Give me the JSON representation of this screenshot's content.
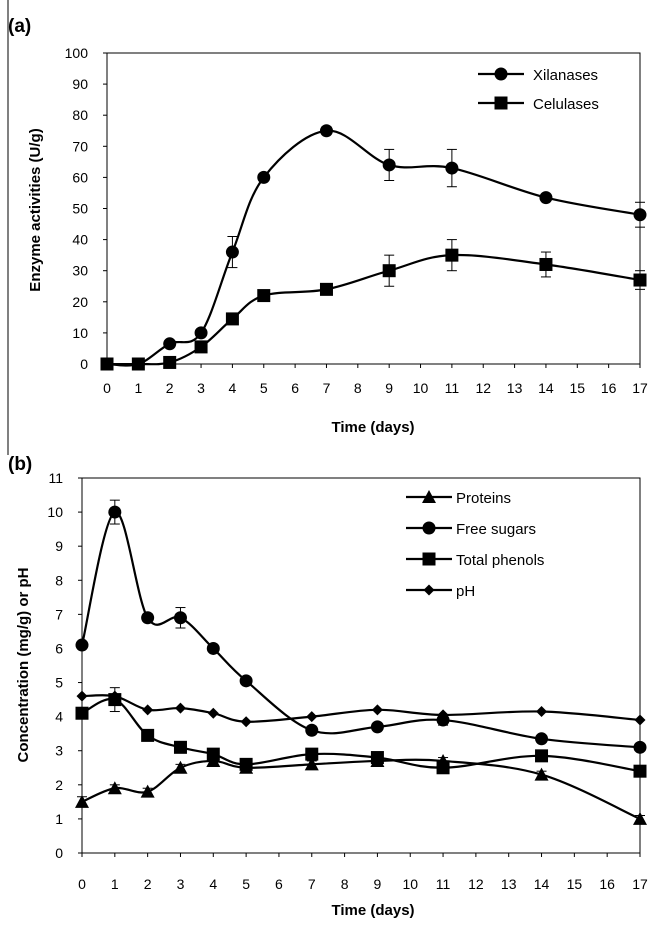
{
  "chart_data": [
    {
      "panel_label": "(a)",
      "type": "line",
      "xlabel": "Time (days)",
      "ylabel": "Enzyme activities (U/g)",
      "xlim": [
        0,
        17
      ],
      "ylim": [
        0,
        100
      ],
      "x_ticks": [
        0,
        1,
        2,
        3,
        4,
        5,
        6,
        7,
        8,
        9,
        10,
        11,
        12,
        13,
        14,
        15,
        16,
        17
      ],
      "y_ticks": [
        0,
        10,
        20,
        30,
        40,
        50,
        60,
        70,
        80,
        90,
        100
      ],
      "grid": false,
      "legend_position": "top-right",
      "x": [
        0,
        1,
        2,
        3,
        4,
        5,
        7,
        9,
        11,
        14,
        17
      ],
      "series": [
        {
          "name": "Xilanases",
          "marker": "circle",
          "values": [
            0,
            0,
            6.5,
            10,
            36,
            60,
            75,
            64,
            63,
            53.5,
            48
          ],
          "errors": [
            0,
            0,
            0.5,
            1,
            5,
            1,
            1,
            5,
            6,
            1,
            4
          ]
        },
        {
          "name": "Celulases",
          "marker": "square",
          "values": [
            0,
            0,
            0.5,
            5.5,
            14.5,
            22,
            24,
            30,
            35,
            32,
            27
          ],
          "errors": [
            0,
            0,
            0.5,
            0.5,
            1,
            1,
            1,
            5,
            5,
            4,
            3
          ]
        }
      ]
    },
    {
      "panel_label": "(b)",
      "type": "line",
      "xlabel": "Time (days)",
      "ylabel": "Concentration (mg/g) or pH",
      "xlim": [
        0,
        17
      ],
      "ylim": [
        0,
        11
      ],
      "x_ticks": [
        0,
        1,
        2,
        3,
        4,
        5,
        6,
        7,
        8,
        9,
        10,
        11,
        12,
        13,
        14,
        15,
        16,
        17
      ],
      "y_ticks": [
        0,
        1,
        2,
        3,
        4,
        5,
        6,
        7,
        8,
        9,
        10,
        11
      ],
      "grid": false,
      "legend_position": "top-right",
      "x": [
        0,
        1,
        2,
        3,
        4,
        5,
        7,
        9,
        11,
        14,
        17
      ],
      "series": [
        {
          "name": "Proteins",
          "marker": "triangle",
          "values": [
            1.5,
            1.9,
            1.8,
            2.5,
            2.7,
            2.5,
            2.6,
            2.7,
            2.7,
            2.3,
            1.0
          ],
          "errors": [
            0.15,
            0.1,
            0.1,
            0.1,
            0.1,
            0.1,
            0.1,
            0.1,
            0.1,
            0.1,
            0.1
          ]
        },
        {
          "name": "Free sugars",
          "marker": "circle",
          "values": [
            6.1,
            10.0,
            6.9,
            6.9,
            6.0,
            5.05,
            3.6,
            3.7,
            3.9,
            3.35,
            3.1
          ],
          "errors": [
            0.1,
            0.35,
            0.1,
            0.3,
            0.1,
            0.1,
            0.1,
            0.1,
            0.15,
            0.1,
            0.1
          ]
        },
        {
          "name": "Total phenols",
          "marker": "square",
          "values": [
            4.1,
            4.5,
            3.45,
            3.1,
            2.9,
            2.6,
            2.9,
            2.8,
            2.5,
            2.85,
            2.4
          ],
          "errors": [
            0.1,
            0.35,
            0.1,
            0.1,
            0.1,
            0.1,
            0.1,
            0.1,
            0.1,
            0.1,
            0.1
          ]
        },
        {
          "name": "pH",
          "marker": "diamond",
          "values": [
            4.6,
            4.6,
            4.2,
            4.25,
            4.1,
            3.85,
            4.0,
            4.2,
            4.05,
            4.15,
            3.9
          ],
          "errors": [
            0,
            0,
            0,
            0,
            0,
            0,
            0,
            0,
            0,
            0,
            0
          ]
        }
      ]
    }
  ],
  "colors": {
    "ink": "#000000",
    "background": "#ffffff"
  }
}
